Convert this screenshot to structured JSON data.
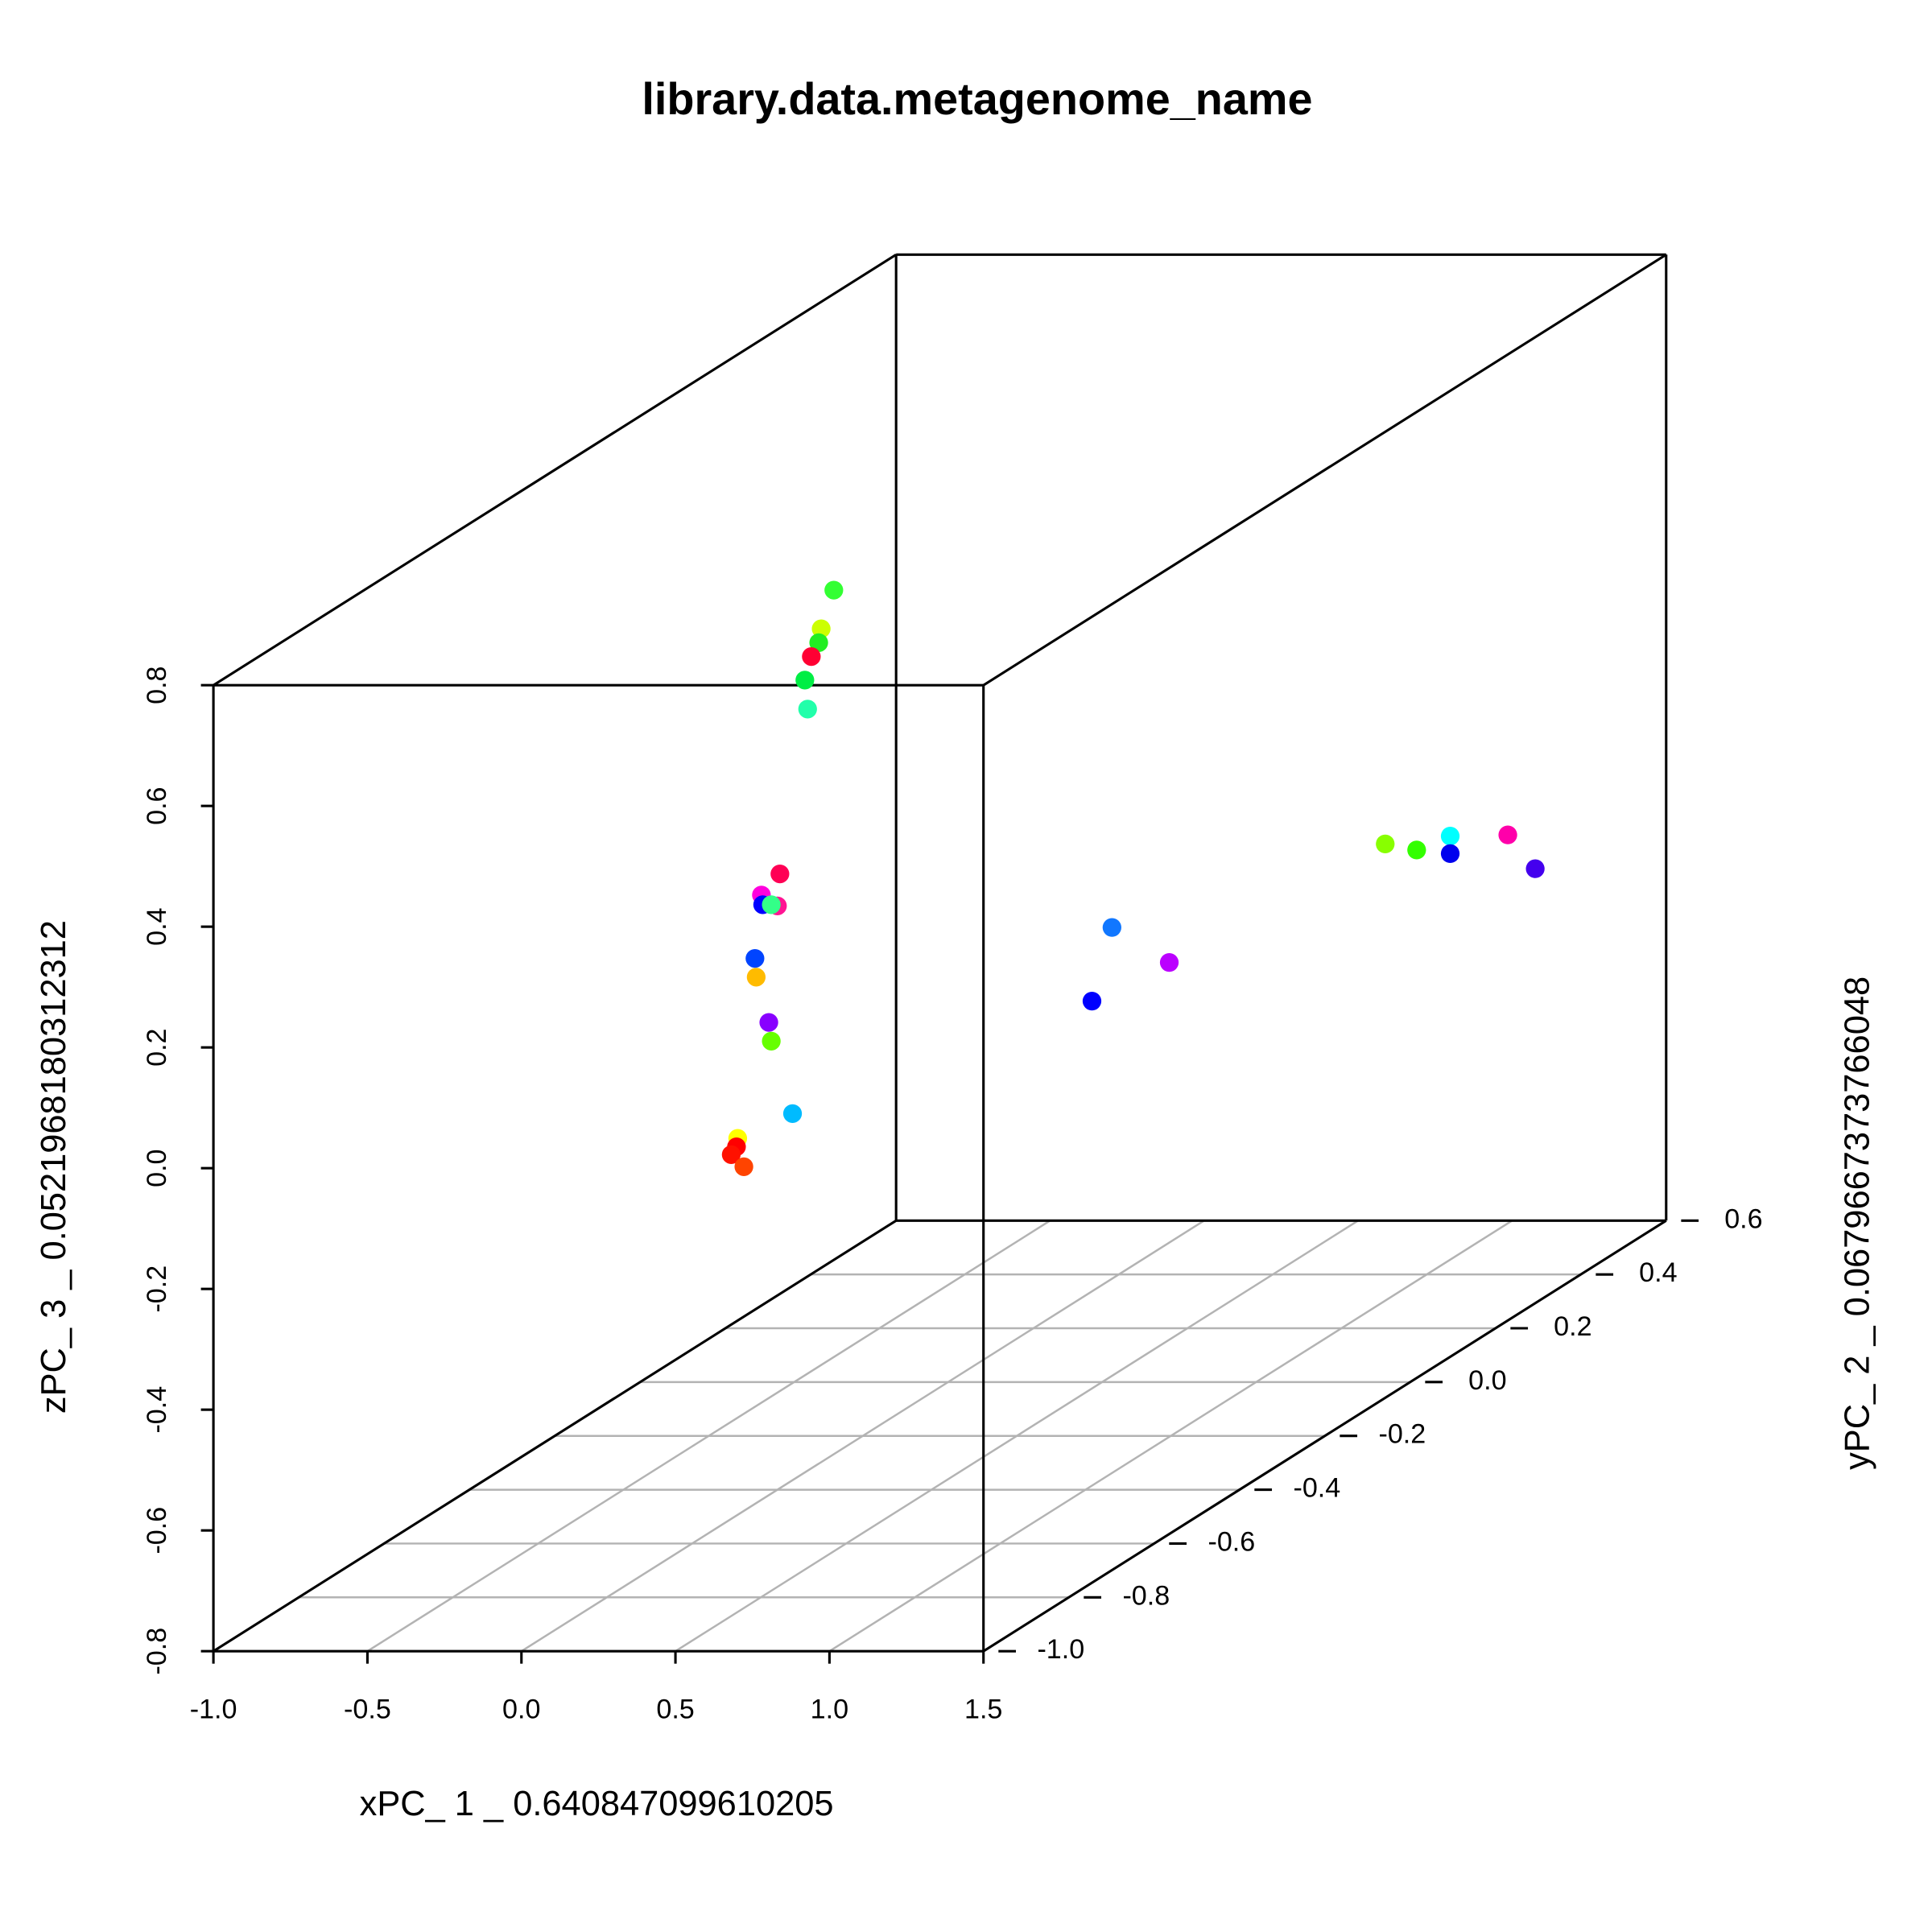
{
  "chart_data": {
    "type": "scatter3d",
    "title": "library.data.metagenome_name",
    "x_label": "xPC_ 1 _ 0.640847099610205",
    "y_label": "yPC_ 2 _ 0.0679667373766048",
    "z_label": "zPC_ 3 _ 0.0521968180312312",
    "xlim": [
      -1.0,
      1.5
    ],
    "ylim": [
      -1.0,
      0.6
    ],
    "zlim": [
      -0.8,
      0.8
    ],
    "xticks": [
      {
        "value": -1.0,
        "label": "-1.0"
      },
      -0.5,
      {
        "value": 0,
        "label": "0.0"
      },
      0.5,
      {
        "value": 1.0,
        "label": "1.0"
      },
      1.5
    ],
    "yticks": [
      {
        "value": -1.0,
        "label": "-1.0"
      },
      -0.8,
      -0.6,
      -0.4,
      -0.2,
      {
        "value": 0,
        "label": "0.0"
      },
      0.2,
      0.4,
      0.6
    ],
    "zticks": [
      -0.8,
      -0.6,
      -0.4,
      -0.2,
      {
        "value": 0,
        "label": "0.0"
      },
      0.2,
      0.4,
      0.6,
      0.8
    ],
    "grid": true,
    "x": [
      0.183,
      0.142,
      0.134,
      0.11,
      0.089,
      0.098,
      0.008,
      -0.052,
      0.0,
      -0.048,
      -0.02,
      -0.073,
      -0.069,
      -0.028,
      -0.02,
      0.049,
      -0.129,
      -0.133,
      -0.15,
      -0.109,
      0.532,
      0.718,
      0.467,
      0.865,
      0.967,
      1.076,
      1.076,
      1.263,
      1.352
    ],
    "y": [
      -0.4,
      -0.4,
      -0.4,
      -0.4,
      -0.4,
      -0.4,
      -0.4,
      -0.4,
      -0.4,
      -0.4,
      -0.4,
      -0.4,
      -0.4,
      -0.4,
      -0.4,
      -0.4,
      -0.4,
      -0.4,
      -0.4,
      -0.4,
      0,
      0,
      0,
      0.4,
      0.4,
      0.4,
      0.4,
      0.4,
      0.4
    ],
    "z": [
      0.69,
      0.626,
      0.603,
      0.58,
      0.541,
      0.493,
      0.22,
      0.185,
      0.167,
      0.169,
      0.169,
      0.08,
      0.049,
      -0.026,
      -0.057,
      -0.177,
      -0.218,
      -0.232,
      -0.245,
      -0.265,
      -0.047,
      -0.105,
      -0.169,
      -0.087,
      -0.097,
      -0.074,
      -0.103,
      -0.072,
      -0.128
    ],
    "colors": [
      "#33ff33",
      "#ccff00",
      "#22ee22",
      "#ff0033",
      "#00ee44",
      "#22ffaa",
      "#ff0055",
      "#ff00dd",
      "#ff1493",
      "#0000ff",
      "#33ff88",
      "#0044ff",
      "#ffbb00",
      "#8800ff",
      "#66ff00",
      "#00bbff",
      "#ffff00",
      "#ff0000",
      "#ff1100",
      "#ff4400",
      "#1177ff",
      "#bb00ff",
      "#0000ff",
      "#88ff00",
      "#33ff00",
      "#00ffff",
      "#0000ee",
      "#ff00aa",
      "#4400ee"
    ]
  }
}
